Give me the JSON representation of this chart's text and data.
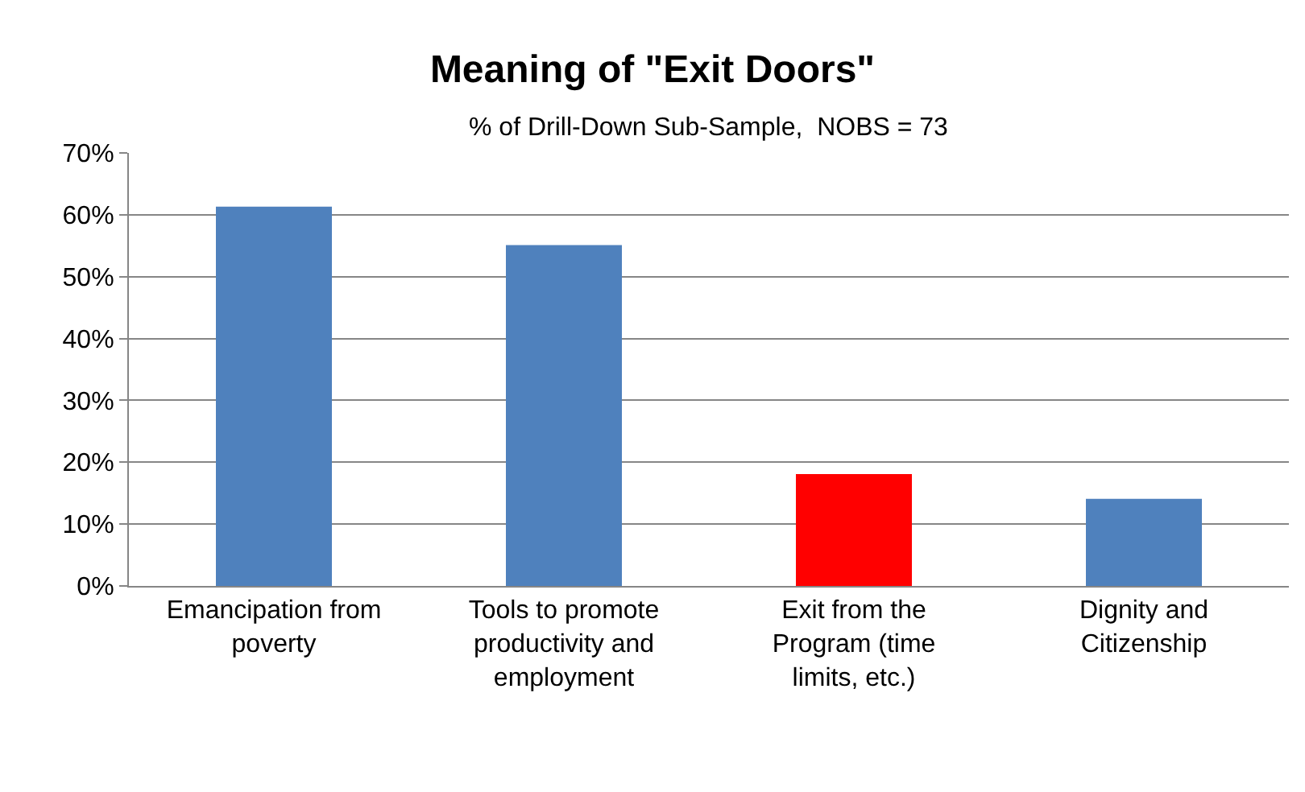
{
  "chart_data": {
    "type": "bar",
    "title": "Meaning of \"Exit Doors\"",
    "subtitle": "% of Drill-Down Sub-Sample,  NOBS = 73",
    "categories": [
      "Emancipation from poverty",
      "Tools to promote productivity and employment",
      "Exit from the Program (time limits, etc.)",
      "Dignity and Citizenship"
    ],
    "values": [
      61.3,
      55.1,
      18.1,
      14.1
    ],
    "colors": [
      "#4f81bd",
      "#4f81bd",
      "#ff0000",
      "#4f81bd"
    ],
    "ylim": [
      0,
      70
    ],
    "yticks": [
      {
        "value": 0,
        "label": "0%"
      },
      {
        "value": 10,
        "label": "10%"
      },
      {
        "value": 20,
        "label": "20%"
      },
      {
        "value": 30,
        "label": "30%"
      },
      {
        "value": 40,
        "label": "40%"
      },
      {
        "value": 50,
        "label": "50%"
      },
      {
        "value": 60,
        "label": "60%"
      },
      {
        "value": 70,
        "label": "70%"
      }
    ],
    "grid": "y"
  }
}
